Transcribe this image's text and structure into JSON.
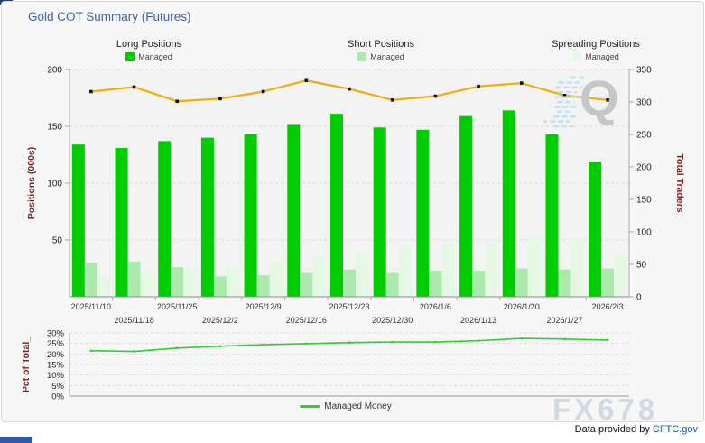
{
  "header": {
    "title": "Gold COT Summary (Futures)"
  },
  "legends": {
    "long": {
      "title": "Long Positions",
      "item": "Managed",
      "color": "#00cc00"
    },
    "short": {
      "title": "Short Positions",
      "item": "Managed",
      "color": "#ace9ac"
    },
    "spreading": {
      "title": "Spreading Positions",
      "item": "Managed",
      "color": "#e4f8e4"
    }
  },
  "colors": {
    "title": "#41629e",
    "axis_title": "#7d221c",
    "tick_label": "#222222",
    "date_label": "#333333",
    "grid": "#d9d9d9",
    "axis_line": "#a8a8a8",
    "plot_bg": "#f3f3f4",
    "link": "#1b57b5"
  },
  "chart_data": [
    {
      "type": "bar",
      "title": "Gold COT Summary (Futures)",
      "categories": [
        "2025/11/10",
        "2025/11/18",
        "2025/11/25",
        "2025/12/2",
        "2025/12/9",
        "2025/12/16",
        "2025/12/23",
        "2025/12/30",
        "2026/1/6",
        "2026/1/13",
        "2026/1/20",
        "2026/1/27",
        "2026/2/3"
      ],
      "series": [
        {
          "name": "Long Positions Managed",
          "type": "bar",
          "axis": "left",
          "color": "#00cc00",
          "values": [
            134,
            131,
            137,
            140,
            143,
            152,
            161,
            149,
            147,
            159,
            164,
            143,
            119
          ]
        },
        {
          "name": "Short Positions Managed",
          "type": "bar",
          "axis": "left",
          "color": "#ace9ac",
          "values": [
            30,
            31,
            26,
            18,
            19,
            21,
            24,
            21,
            23,
            23,
            25,
            24,
            25
          ]
        },
        {
          "name": "Spreading Positions Managed",
          "type": "bar",
          "axis": "left",
          "color": "#e4f8e4",
          "values": [
            18,
            22,
            25,
            26,
            31,
            35,
            39,
            44,
            48,
            48,
            53,
            51,
            37
          ]
        },
        {
          "name": "Total Traders",
          "type": "line",
          "axis": "right",
          "color": "#ecaf0d",
          "marker_color": "#111111",
          "values": [
            316,
            323,
            301,
            305,
            316,
            333,
            320,
            303,
            309,
            324,
            329,
            310,
            303
          ]
        }
      ],
      "left_axis": {
        "label": "Positions (000s)",
        "ticks": [
          200,
          150,
          100,
          50
        ],
        "range": [
          0,
          200
        ]
      },
      "right_axis": {
        "label": "Total Traders",
        "ticks": [
          350,
          300,
          250,
          200,
          150,
          100,
          50,
          0
        ],
        "range": [
          0,
          350
        ]
      },
      "grid": "horizontal dashed at left-axis ticks",
      "legend_position": "top"
    },
    {
      "type": "line",
      "categories": [
        "2025/11/10",
        "2025/11/18",
        "2025/11/25",
        "2025/12/2",
        "2025/12/9",
        "2025/12/16",
        "2025/12/23",
        "2025/12/30",
        "2026/1/6",
        "2026/1/13",
        "2026/1/20",
        "2026/1/27",
        "2026/2/3"
      ],
      "series": [
        {
          "name": "Managed Money",
          "type": "line",
          "color": "#33cc33",
          "values": [
            21.5,
            21.2,
            22.8,
            23.7,
            24.4,
            24.9,
            25.4,
            25.7,
            25.7,
            26.3,
            27.4,
            27.1,
            26.6
          ]
        }
      ],
      "left_axis": {
        "label": "Pct of Total_",
        "ticks": [
          "30%",
          "25%",
          "20%",
          "15%",
          "10%",
          "5%",
          "0%"
        ],
        "range": [
          0,
          30
        ]
      },
      "grid": "horizontal dashed",
      "legend_position": "bottom"
    }
  ],
  "watermarks": {
    "q": "Q",
    "fx": "FX678"
  },
  "footer": {
    "attribution_prefix": "Data provided by ",
    "attribution_link": "CFTC.gov"
  }
}
